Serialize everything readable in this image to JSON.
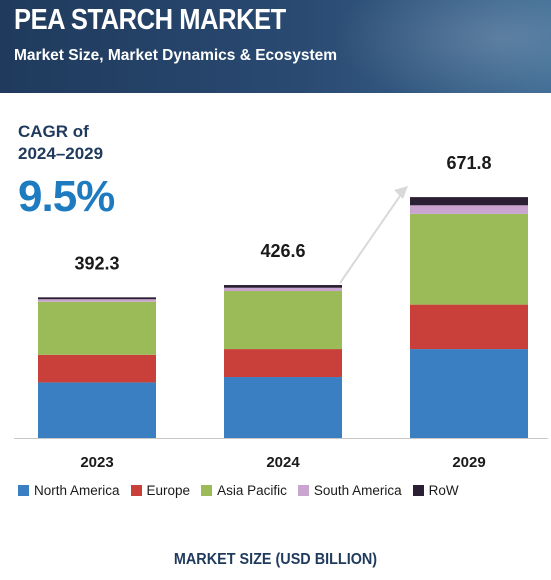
{
  "header": {
    "title": "PEA STARCH MARKET",
    "subtitle": "Market Size, Market Dynamics & Ecosystem"
  },
  "cagr": {
    "label_line1": "CAGR of",
    "label_line2": "2024–2029",
    "value": "9.5%"
  },
  "footer": {
    "title": "MARKET SIZE (USD BILLION)"
  },
  "colors": {
    "header_bg": "#24426a",
    "cagr_value": "#1e7bc0",
    "axis": "#c8c8c8",
    "arrow": "#d9d9d9"
  },
  "chart_data": {
    "type": "bar",
    "stacked": true,
    "categories": [
      "2023",
      "2024",
      "2029"
    ],
    "totals": [
      392.3,
      426.6,
      671.8
    ],
    "total_labels": [
      "392.3",
      "426.6",
      "671.8"
    ],
    "ylim": [
      0,
      700
    ],
    "grid": false,
    "legend_position": "bottom",
    "series": [
      {
        "name": "North America",
        "color": "#3a7fc2",
        "values": [
          155,
          170,
          248
        ]
      },
      {
        "name": "Europe",
        "color": "#c9403a",
        "values": [
          77,
          78,
          124
        ]
      },
      {
        "name": "Asia Pacific",
        "color": "#9bbb59",
        "values": [
          148,
          162,
          253
        ]
      },
      {
        "name": "South America",
        "color": "#c9a5d0",
        "values": [
          7,
          9,
          24
        ]
      },
      {
        "name": "RoW",
        "color": "#2b1f33",
        "values": [
          5.3,
          7.6,
          22.8
        ]
      }
    ]
  }
}
